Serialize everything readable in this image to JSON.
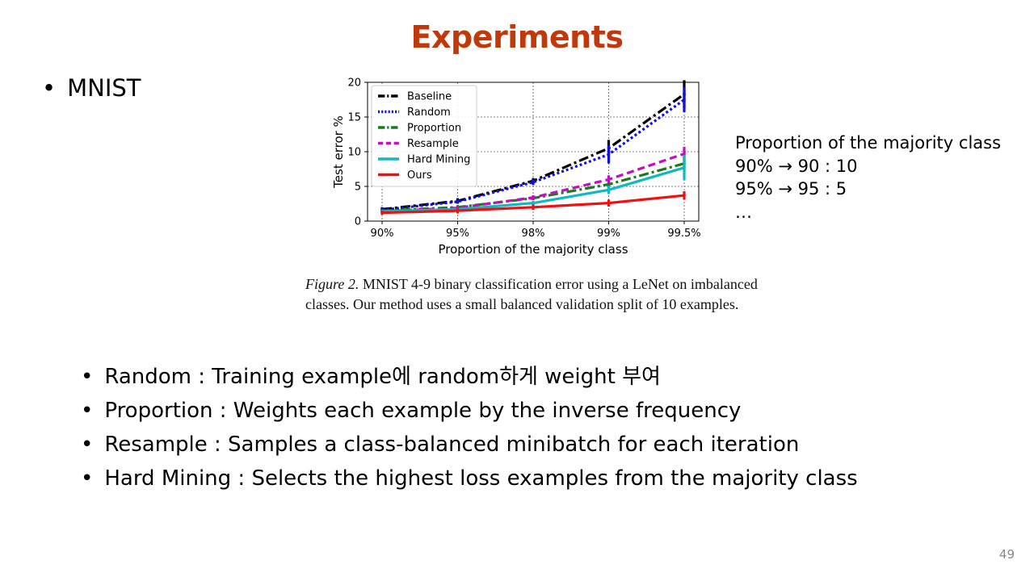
{
  "slide": {
    "title": "Experiments",
    "bullet": "MNIST",
    "page_number": "49"
  },
  "caption": {
    "label": "Figure 2.",
    "text": "MNIST 4-9 binary classification error using a LeNet on imbalanced classes. Our method uses a small balanced validation split of 10 examples."
  },
  "side_note": {
    "lines": [
      "Proportion of the majority class",
      "90% → 90 : 10",
      "95% → 95 : 5",
      "…"
    ]
  },
  "sub_bullets": [
    "Random : Training example에 random하게 weight 부여",
    "Proportion : Weights each example by the inverse frequency",
    "Resample : Samples a class-balanced minibatch for each iteration",
    "Hard Mining : Selects the highest loss examples from the majority class"
  ],
  "chart_data": {
    "type": "line",
    "title": "",
    "xlabel": "Proportion of the majority class",
    "ylabel": "Test error %",
    "categories": [
      "90%",
      "95%",
      "98%",
      "99%",
      "99.5%"
    ],
    "yticks": [
      0,
      5,
      10,
      15,
      20
    ],
    "ylim": [
      0,
      20
    ],
    "grid": true,
    "legend_position": "top-left",
    "series": [
      {
        "name": "Baseline",
        "values": [
          1.7,
          2.9,
          5.8,
          10.5,
          18.3
        ],
        "err": [
          0.3,
          0.4,
          0.4,
          1.2,
          2.0
        ],
        "color": "#000000",
        "dash": "12,4,3,4"
      },
      {
        "name": "Random",
        "values": [
          1.6,
          2.8,
          5.6,
          9.6,
          17.5
        ],
        "err": [
          0.3,
          0.3,
          0.4,
          1.3,
          1.8
        ],
        "color": "#1010e0",
        "dash": "3,3"
      },
      {
        "name": "Proportion",
        "values": [
          1.5,
          2.0,
          3.3,
          5.3,
          8.3
        ],
        "err": [
          0.2,
          0.3,
          0.3,
          0.6,
          1.0
        ],
        "color": "#1a7a1a",
        "dash": "12,4,3,4"
      },
      {
        "name": "Resample",
        "values": [
          1.4,
          1.9,
          3.4,
          6.0,
          9.7
        ],
        "err": [
          0.2,
          0.3,
          0.3,
          0.6,
          1.0
        ],
        "color": "#c010c0",
        "dash": "9,5"
      },
      {
        "name": "Hard Mining",
        "values": [
          1.4,
          1.7,
          2.6,
          4.5,
          7.7
        ],
        "err": [
          0.2,
          0.2,
          0.3,
          0.6,
          1.8
        ],
        "color": "#10b8c0",
        "dash": ""
      },
      {
        "name": "Ours",
        "values": [
          1.2,
          1.5,
          2.0,
          2.6,
          3.7
        ],
        "err": [
          0.3,
          0.4,
          0.4,
          0.5,
          0.6
        ],
        "color": "#f01010",
        "dash": ""
      }
    ]
  }
}
